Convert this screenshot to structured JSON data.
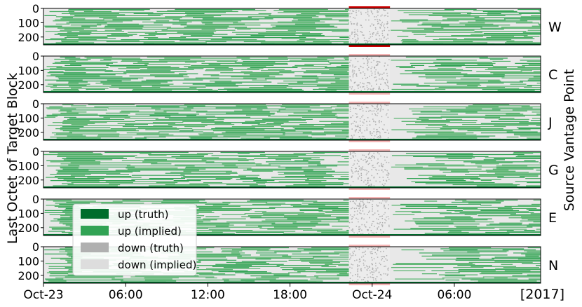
{
  "chart_data": {
    "type": "heatmap",
    "ylabel": "Last Octet of Target Block",
    "right_label": "Source Vantage Point",
    "y_ticks": [
      "0",
      "100",
      "200"
    ],
    "ylim": [
      0,
      255
    ],
    "x_ticks": [
      "Oct-23",
      "06:00",
      "12:00",
      "18:00",
      "Oct-24",
      "06:00"
    ],
    "x_tick_hours": [
      0,
      6,
      12,
      18,
      24,
      30
    ],
    "xlim_hours": [
      0,
      36.3
    ],
    "year_label": "[2017]",
    "outage_window_hours": [
      22.3,
      25.3
    ],
    "panels": [
      {
        "vantage": "W",
        "outage_color": "#cc0000"
      },
      {
        "vantage": "C",
        "outage_color": "#f5b5b5"
      },
      {
        "vantage": "J",
        "outage_color": "#f5b5b5"
      },
      {
        "vantage": "G",
        "outage_color": "#f5b5b5"
      },
      {
        "vantage": "E",
        "outage_color": "#f5b5b5"
      },
      {
        "vantage": "N",
        "outage_color": "#f5b5b5"
      }
    ],
    "legend": [
      {
        "label": "up (truth)",
        "color": "#006d2c"
      },
      {
        "label": "up (implied)",
        "color": "#31a354"
      },
      {
        "label": "down (truth)",
        "color": "#b0b0b0"
      },
      {
        "label": "down (implied)",
        "color": "#dddddd"
      }
    ],
    "background_color": "#e8e8e8"
  }
}
